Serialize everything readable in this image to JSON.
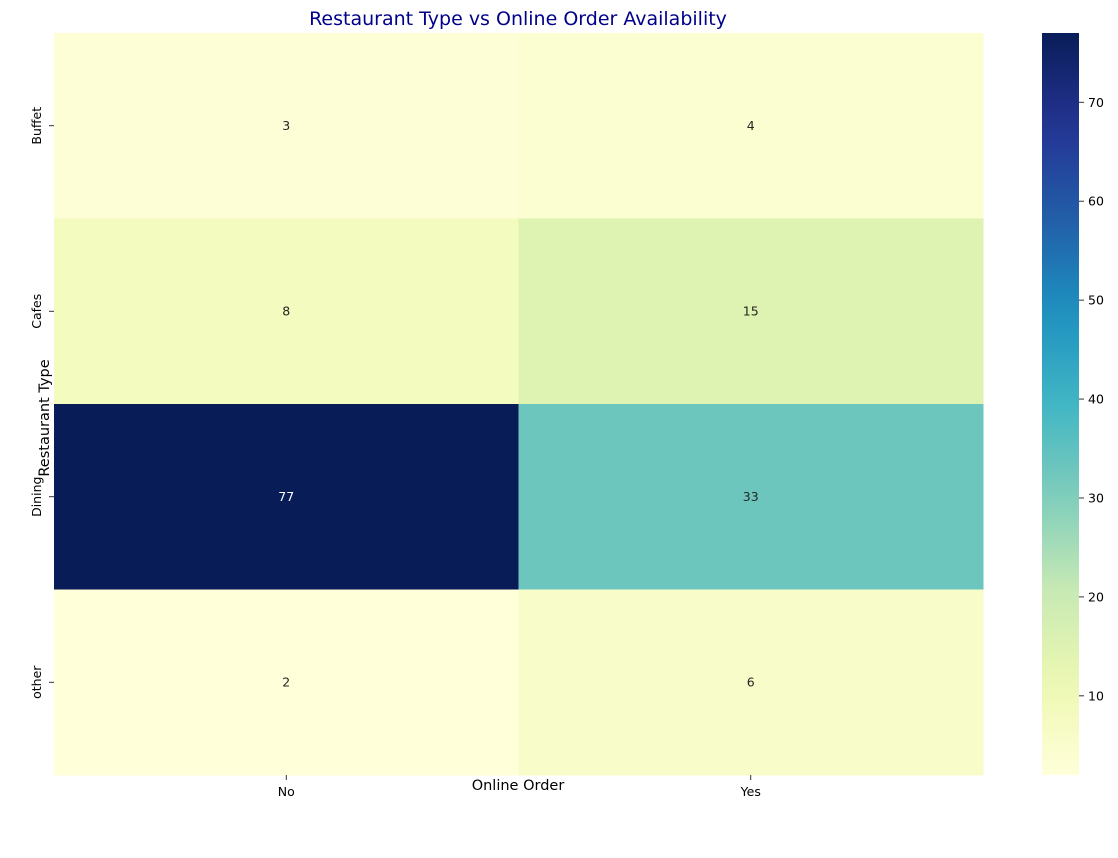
{
  "chart_data": {
    "type": "heatmap",
    "title": "Restaurant Type vs Online Order Availability",
    "xlabel": "Online Order",
    "ylabel": "Restaurant Type",
    "x_categories": [
      "No",
      "Yes"
    ],
    "y_categories": [
      "Buffet",
      "Cafes",
      "Dining",
      "other"
    ],
    "values": [
      [
        3,
        4
      ],
      [
        8,
        15
      ],
      [
        77,
        33
      ],
      [
        2,
        6
      ]
    ],
    "colormap": "YlGnBu",
    "vmin": 2,
    "vmax": 77,
    "colorbar_ticks": [
      10,
      20,
      30,
      40,
      50,
      60,
      70
    ],
    "colorbar_tick_labels": [
      "10",
      "20",
      "30",
      "40",
      "50",
      "60",
      "70"
    ],
    "annotate": true,
    "title_color": "#00008b"
  }
}
